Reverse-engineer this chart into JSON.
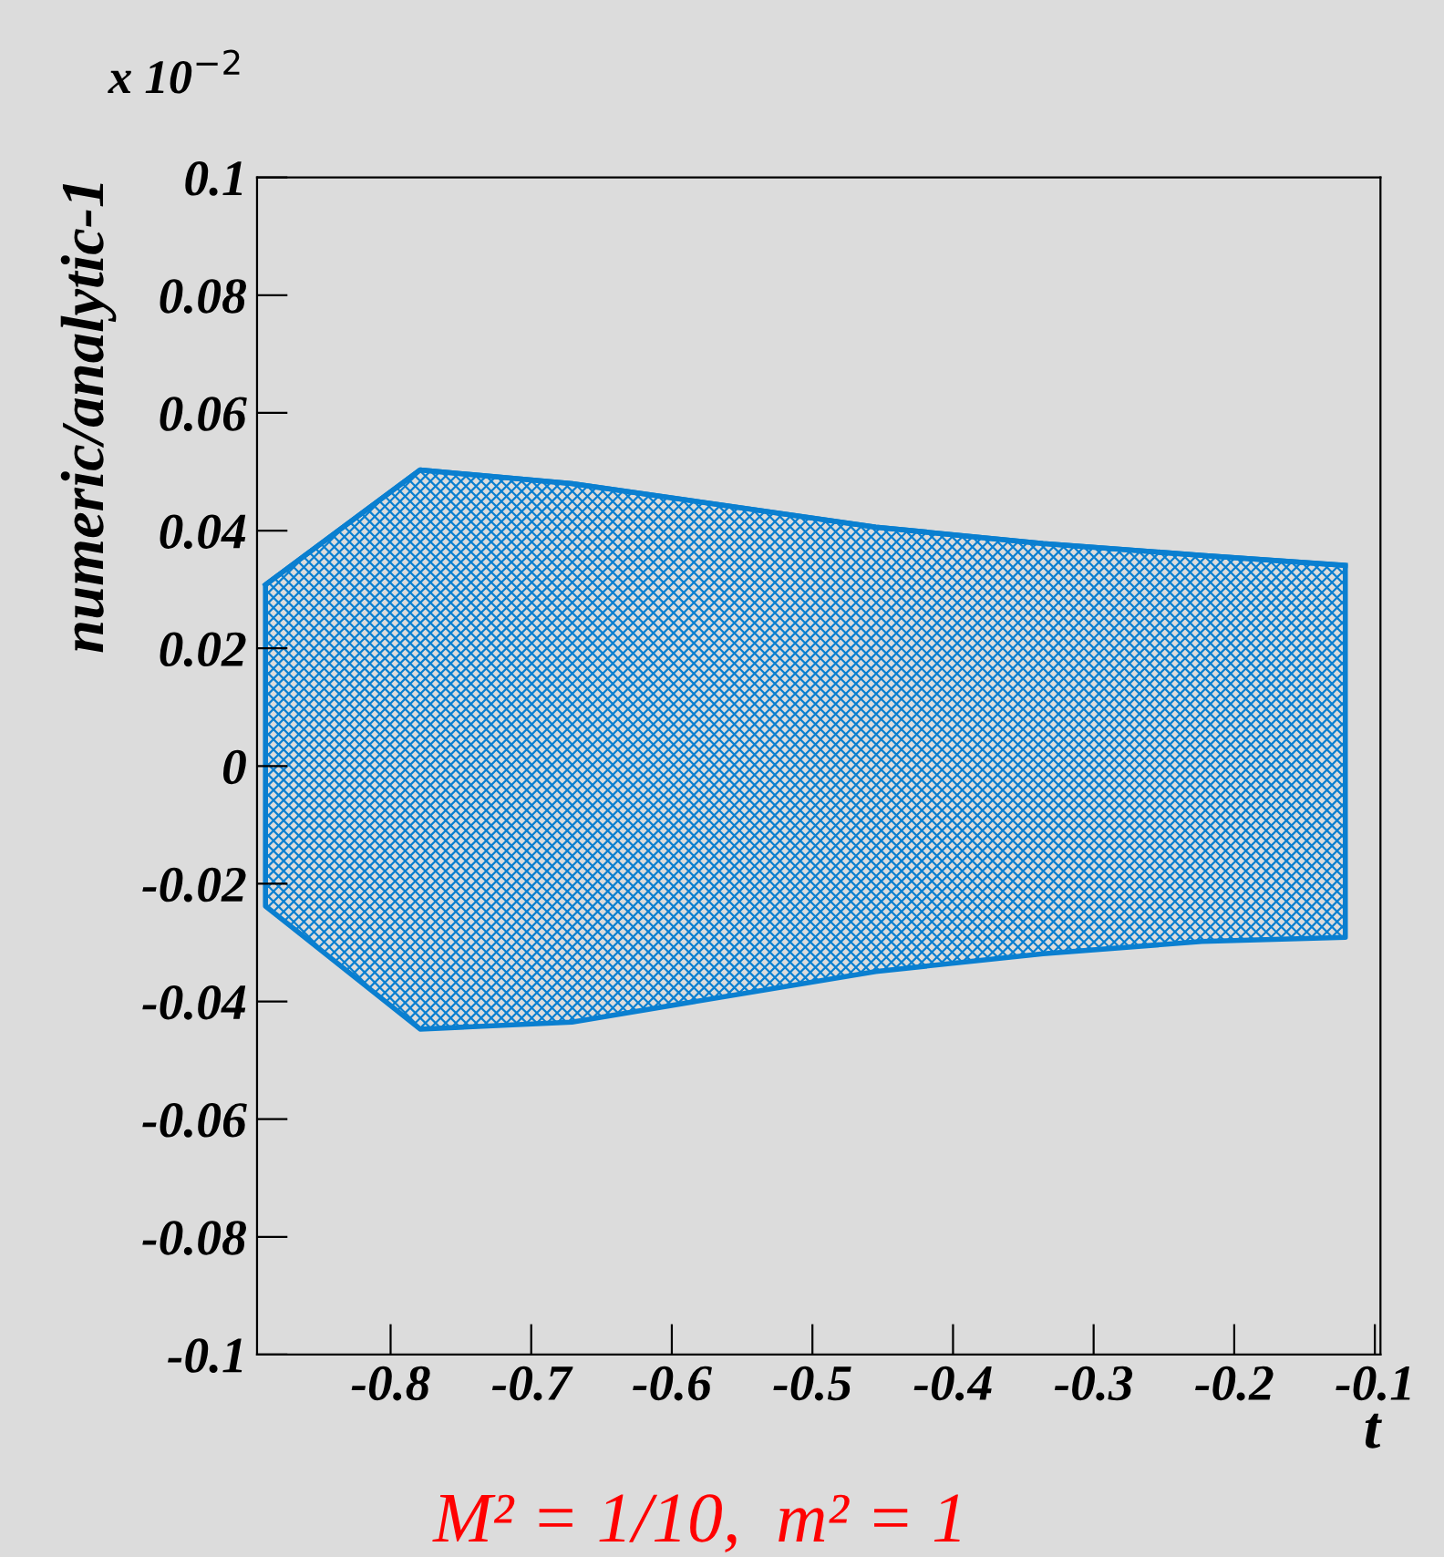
{
  "chart_data": {
    "type": "line",
    "xlabel": "t",
    "ylabel": "numeric/analytic-1",
    "annotations": [
      "x 10$^{−2}$",
      "M² = 1/10,  m² = 1"
    ],
    "series": [
      {
        "color": "#0a7fd0",
        "x": [
          -0.889,
          -0.779,
          -0.671,
          -0.455,
          -0.336,
          -0.223,
          -0.121
        ],
        "lower": [
          -0.0238,
          -0.0447,
          -0.0435,
          -0.0349,
          -0.0319,
          -0.0298,
          -0.0291
        ],
        "values": [
          0.0308,
          0.0503,
          0.048,
          0.0406,
          0.0378,
          0.0358,
          0.0341
        ],
        "upper": [
          0.0308,
          0.0503,
          0.048,
          0.0406,
          0.0378,
          0.0358,
          0.0341
        ]
      }
    ],
    "xlim": [
      -0.895,
      -0.096
    ],
    "xticks": [
      -0.8,
      -0.7,
      -0.6,
      -0.5,
      -0.4,
      -0.3,
      -0.2,
      -0.1
    ],
    "ylim": [
      -0.1,
      0.1
    ],
    "yticks": [
      -0.1,
      -0.08,
      -0.06,
      -0.04,
      -0.02,
      0,
      0.02,
      0.04,
      0.06,
      0.08,
      0.1
    ],
    "grid": false,
    "legend": false
  }
}
